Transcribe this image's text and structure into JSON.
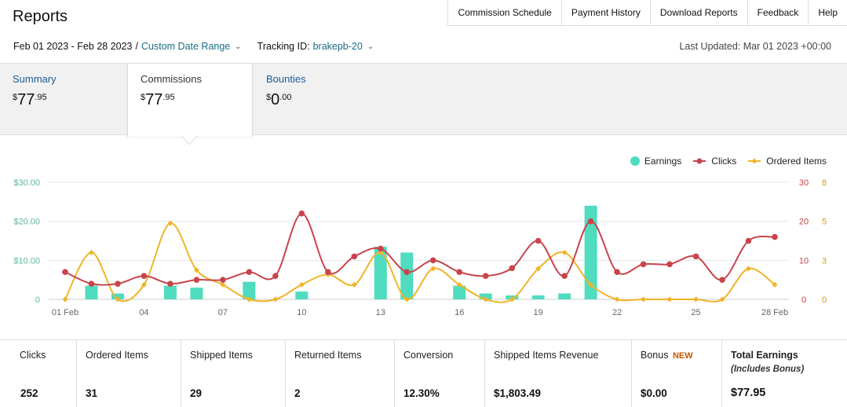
{
  "page": {
    "title": "Reports"
  },
  "topnav": [
    "Commission Schedule",
    "Payment History",
    "Download Reports",
    "Feedback",
    "Help"
  ],
  "filters": {
    "date_range": "Feb 01 2023 - Feb 28 2023",
    "separator": "/",
    "range_type": "Custom Date Range",
    "tracking_label": "Tracking ID:",
    "tracking_value": "brakepb-20",
    "last_updated": "Last Updated: Mar 01 2023 +00:00"
  },
  "tabs": [
    {
      "label": "Summary",
      "currency": "$",
      "whole": "77",
      "cents": ".95",
      "active": false
    },
    {
      "label": "Commissions",
      "currency": "$",
      "whole": "77",
      "cents": ".95",
      "active": true
    },
    {
      "label": "Bounties",
      "currency": "$",
      "whole": "0",
      "cents": ".00",
      "active": false
    }
  ],
  "legend": {
    "earnings": "Earnings",
    "clicks": "Clicks",
    "ordered": "Ordered Items"
  },
  "colors": {
    "earnings": "#4fdcbf",
    "clicks": "#c8444a",
    "ordered": "#f0b429",
    "link": "#1b6d84",
    "new_badge": "#c45500"
  },
  "chart_data": {
    "type": "bar",
    "x": [
      "01 Feb",
      "02",
      "03",
      "04",
      "05",
      "06",
      "07",
      "08",
      "09",
      "10",
      "11",
      "12",
      "13",
      "14",
      "15",
      "16",
      "17",
      "18",
      "19",
      "20",
      "21",
      "22",
      "23",
      "24",
      "25",
      "26",
      "27",
      "28 Feb"
    ],
    "x_tick_labels": [
      "01 Feb",
      "04",
      "07",
      "10",
      "13",
      "16",
      "19",
      "22",
      "25",
      "28 Feb"
    ],
    "series": [
      {
        "name": "Earnings",
        "type": "bar",
        "axis": "left",
        "values": [
          0,
          3.5,
          1.5,
          0,
          3.5,
          3,
          0,
          4.5,
          0,
          2,
          0,
          0,
          13.5,
          12,
          0,
          3.5,
          1.5,
          1,
          1,
          1.5,
          24,
          0,
          0,
          0,
          0,
          0,
          0,
          0
        ]
      },
      {
        "name": "Clicks",
        "type": "line",
        "axis": "right1",
        "values": [
          7,
          4,
          4,
          6,
          4,
          5,
          5,
          7,
          6,
          22,
          7,
          11,
          13,
          7,
          10,
          7,
          6,
          8,
          15,
          6,
          20,
          7,
          9,
          9,
          11,
          5,
          15,
          16
        ]
      },
      {
        "name": "Ordered Items",
        "type": "line",
        "axis": "right2",
        "values": [
          0,
          3.2,
          0,
          1,
          5.2,
          2,
          1,
          0,
          0,
          1,
          1.7,
          1,
          3.2,
          0,
          2.1,
          1,
          0,
          0,
          2.1,
          3.2,
          1,
          0,
          0,
          0,
          0,
          0,
          2.1,
          1
        ]
      }
    ],
    "y_left": {
      "ticks": [
        "0",
        "$10.00",
        "$20.00",
        "$30.00"
      ],
      "range": [
        0,
        30
      ]
    },
    "y_right1": {
      "ticks": [
        "0",
        "10",
        "20",
        "30"
      ],
      "range": [
        0,
        30
      ]
    },
    "y_right2": {
      "ticks": [
        "0",
        "3",
        "5",
        "8"
      ],
      "range": [
        0,
        8
      ]
    },
    "grid": true,
    "legend_position": "top-right"
  },
  "stats": [
    {
      "label": "Clicks",
      "value": "252"
    },
    {
      "label": "Ordered Items",
      "value": "31"
    },
    {
      "label": "Shipped Items",
      "value": "29"
    },
    {
      "label": "Returned Items",
      "value": "2"
    },
    {
      "label": "Conversion",
      "value": "12.30%"
    },
    {
      "label": "Shipped Items Revenue",
      "value": "$1,803.49"
    },
    {
      "label": "Bonus",
      "badge": "NEW",
      "value": "$0.00"
    },
    {
      "label": "Total Earnings",
      "sub": "(Includes Bonus)",
      "value": "$77.95"
    }
  ]
}
